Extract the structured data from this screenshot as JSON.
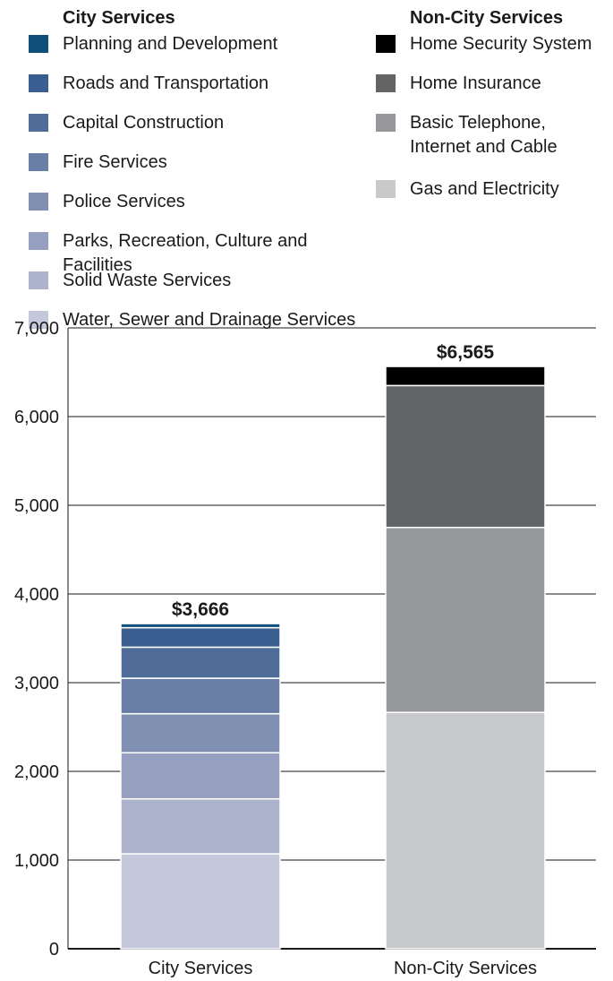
{
  "legend": {
    "city_title": "City Services",
    "noncity_title": "Non-City Services",
    "city_items": [
      {
        "label": "Planning and Development",
        "color": "#0f4f7a"
      },
      {
        "label": "Roads and Transportation",
        "color": "#3a5e8f"
      },
      {
        "label": "Capital Construction",
        "color": "#4f6d98"
      },
      {
        "label": "Fire Services",
        "color": "#6a7fa6"
      },
      {
        "label": "Police Services",
        "color": "#8090b3"
      },
      {
        "label": "Parks, Recreation, Culture and Facilities",
        "color": "#979fc0"
      },
      {
        "label": "Solid Waste Services",
        "color": "#adb3cd"
      },
      {
        "label": "Water, Sewer and Drainage Services",
        "color": "#c3c8da"
      }
    ],
    "noncity_items": [
      {
        "label": "Home Security System",
        "color": "#000000"
      },
      {
        "label": "Home Insurance",
        "color": "#636466"
      },
      {
        "label": "Basic Telephone, Internet and Cable",
        "color": "#97989b"
      },
      {
        "label": "Gas and Electricity",
        "color": "#c8c9cb"
      }
    ]
  },
  "chart_data": {
    "type": "bar",
    "stacked": true,
    "categories": [
      "City Services",
      "Non-City Services"
    ],
    "ylim": [
      0,
      7000
    ],
    "yticks": [
      "0",
      "1,000",
      "2,000",
      "3,000",
      "4,000",
      "5,000",
      "6,000",
      "7,000"
    ],
    "grid": true,
    "totals": [
      "$3,666",
      "$6,565"
    ],
    "series": [
      {
        "name": "Water, Sewer and Drainage Services",
        "color": "#c3c8da",
        "values": [
          1070,
          0
        ]
      },
      {
        "name": "Solid Waste Services",
        "color": "#adb3cd",
        "values": [
          620,
          0
        ]
      },
      {
        "name": "Parks, Recreation, Culture and Facilities",
        "color": "#979fc0",
        "values": [
          520,
          0
        ]
      },
      {
        "name": "Police Services",
        "color": "#8090b3",
        "values": [
          440,
          0
        ]
      },
      {
        "name": "Fire Services",
        "color": "#6a7fa6",
        "values": [
          400,
          0
        ]
      },
      {
        "name": "Capital Construction",
        "color": "#4f6d98",
        "values": [
          350,
          0
        ]
      },
      {
        "name": "Roads and Transportation",
        "color": "#3a5e8f",
        "values": [
          220,
          0
        ]
      },
      {
        "name": "Planning and Development",
        "color": "#0f4f7a",
        "values": [
          46,
          0
        ]
      },
      {
        "name": "Gas and Electricity",
        "color": "#c8c9cb",
        "values": [
          0,
          2665
        ]
      },
      {
        "name": "Basic Telephone, Internet and Cable",
        "color": "#97989b",
        "values": [
          0,
          2085
        ]
      },
      {
        "name": "Home Insurance",
        "color": "#636466",
        "values": [
          0,
          1600
        ]
      },
      {
        "name": "Home Security System",
        "color": "#000000",
        "values": [
          0,
          215
        ]
      }
    ]
  }
}
